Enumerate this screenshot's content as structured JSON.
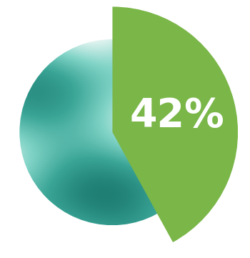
{
  "chart_data": {
    "type": "pie",
    "values": [
      42,
      58
    ],
    "value_labels": [
      "42%",
      null
    ],
    "colors": [
      "#7ab648",
      "#3aa596"
    ],
    "data_labels": true
  }
}
